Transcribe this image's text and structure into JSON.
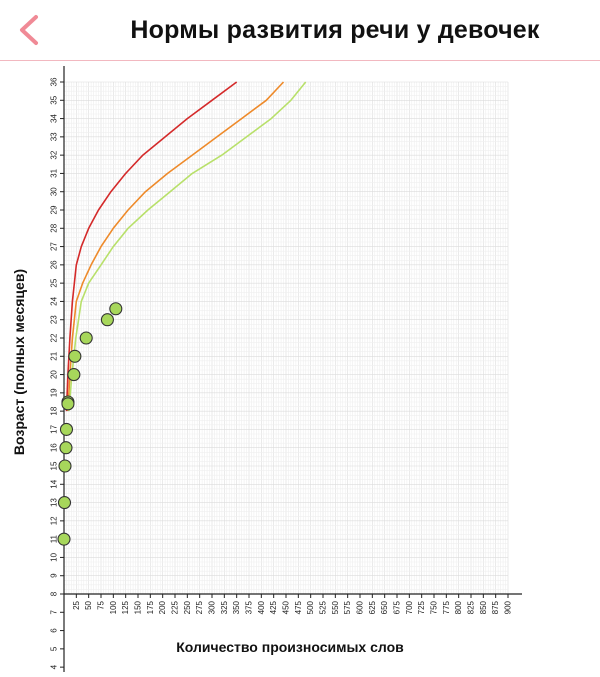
{
  "header": {
    "title": "Нормы развития речи у девочек",
    "back_icon": "chevron-left-icon",
    "accent": "#f08a96"
  },
  "chart_data": {
    "type": "line",
    "xlabel": "Количество произносимых слов",
    "ylabel": "Возраст (полных месяцев)",
    "xlim": [
      0,
      900
    ],
    "ylim": [
      4,
      36
    ],
    "grid": true,
    "x_ticks": [
      25,
      50,
      75,
      100,
      125,
      150,
      175,
      200,
      225,
      250,
      275,
      300,
      325,
      350,
      375,
      400,
      425,
      450,
      475,
      500,
      525,
      550,
      575,
      600,
      625,
      650,
      675,
      700,
      725,
      750,
      775,
      800,
      825,
      850,
      875,
      900
    ],
    "y_ticks": [
      4,
      5,
      6,
      7,
      8,
      9,
      10,
      11,
      12,
      13,
      14,
      15,
      16,
      17,
      18,
      19,
      20,
      21,
      22,
      23,
      24,
      25,
      26,
      27,
      28,
      29,
      30,
      31,
      32,
      33,
      34,
      35,
      36
    ],
    "series": [
      {
        "color": "#d42a2a",
        "points": [
          [
            5,
            18
          ],
          [
            8,
            20
          ],
          [
            12,
            22
          ],
          [
            17,
            24
          ],
          [
            25,
            26
          ],
          [
            35,
            27
          ],
          [
            50,
            28
          ],
          [
            70,
            29
          ],
          [
            95,
            30
          ],
          [
            125,
            31
          ],
          [
            160,
            32
          ],
          [
            205,
            33
          ],
          [
            250,
            34
          ],
          [
            300,
            35
          ],
          [
            350,
            36
          ]
        ]
      },
      {
        "color": "#ee8a2a",
        "points": [
          [
            8,
            18
          ],
          [
            12,
            20
          ],
          [
            17,
            22
          ],
          [
            25,
            24
          ],
          [
            38,
            25
          ],
          [
            55,
            26
          ],
          [
            75,
            27
          ],
          [
            100,
            28
          ],
          [
            130,
            29
          ],
          [
            165,
            30
          ],
          [
            210,
            31
          ],
          [
            260,
            32
          ],
          [
            310,
            33
          ],
          [
            360,
            34
          ],
          [
            410,
            35
          ],
          [
            445,
            36
          ]
        ]
      },
      {
        "color": "#b8e06a",
        "points": [
          [
            10,
            18
          ],
          [
            16,
            20
          ],
          [
            24,
            22
          ],
          [
            35,
            24
          ],
          [
            50,
            25
          ],
          [
            75,
            26
          ],
          [
            100,
            27
          ],
          [
            130,
            28
          ],
          [
            170,
            29
          ],
          [
            215,
            30
          ],
          [
            260,
            31
          ],
          [
            320,
            32
          ],
          [
            370,
            33
          ],
          [
            420,
            34
          ],
          [
            460,
            35
          ],
          [
            490,
            36
          ]
        ]
      }
    ],
    "points": [
      {
        "x": 0,
        "y": 11
      },
      {
        "x": 1,
        "y": 13
      },
      {
        "x": 2,
        "y": 15
      },
      {
        "x": 4,
        "y": 16
      },
      {
        "x": 5,
        "y": 17
      },
      {
        "x": 8,
        "y": 18.5
      },
      {
        "x": 8,
        "y": 18.4
      },
      {
        "x": 20,
        "y": 20
      },
      {
        "x": 22,
        "y": 21
      },
      {
        "x": 45,
        "y": 22
      },
      {
        "x": 88,
        "y": 23
      },
      {
        "x": 105,
        "y": 23.6
      }
    ],
    "point_color": "#a7d75b"
  }
}
